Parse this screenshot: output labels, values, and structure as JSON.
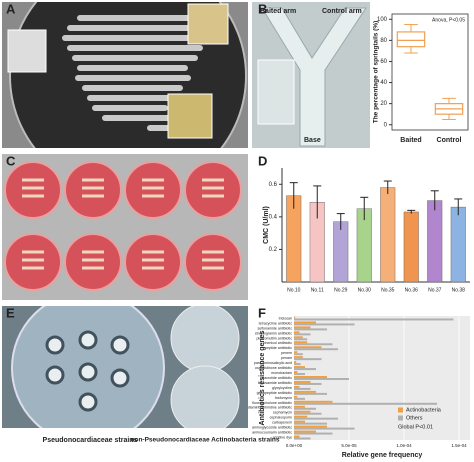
{
  "panel_labels": [
    "A",
    "B",
    "C",
    "D",
    "E",
    "F"
  ],
  "photo_texts": {
    "baited_arm": "Baited arm",
    "control_arm": "Control arm",
    "base": "Base",
    "e_left": "Pseudonocardiaceae strains",
    "e_right": "non-Pseudonocardiaceae Actinobacteria strains"
  },
  "chart_data": [
    {
      "type": "box",
      "ylabel": "The percentage of springtails (%)",
      "annotation": "Anova, P<0.05",
      "categories": [
        "Baited",
        "Control"
      ],
      "color": "#f0a050",
      "stats": [
        {
          "min": 68,
          "q1": 74,
          "median": 80,
          "q3": 88,
          "max": 95
        },
        {
          "min": 5,
          "q1": 10,
          "median": 15,
          "q3": 20,
          "max": 25
        }
      ],
      "ylim": [
        -5,
        105
      ],
      "yticks": [
        0,
        20,
        40,
        60,
        80,
        100
      ]
    },
    {
      "type": "bar",
      "ylabel": "CMC (U/ml)",
      "categories": [
        "No.10",
        "No.11",
        "No.29",
        "No.30",
        "No.35",
        "No.36",
        "No.37",
        "No.38"
      ],
      "values": [
        0.53,
        0.49,
        0.37,
        0.45,
        0.58,
        0.43,
        0.5,
        0.46
      ],
      "errors": [
        0.08,
        0.1,
        0.05,
        0.07,
        0.04,
        0.01,
        0.06,
        0.05
      ],
      "colors": [
        "#f5a35f",
        "#f7c4c4",
        "#b3a4d8",
        "#a8d38c",
        "#f5b07a",
        "#f0954f",
        "#b286cf",
        "#8db3e2"
      ],
      "ylim": [
        0,
        0.7
      ],
      "yticks": [
        0.2,
        0.4,
        0.6
      ]
    },
    {
      "type": "hbar",
      "ylabel": "Antibiotics resistance genes",
      "xlabel": "Relative gene frequency",
      "annotation": "Global P<0.01",
      "categories": [
        "triclosan",
        "tetracycline antibiotic",
        "sulfonamide antibiotic",
        "streptogramin antibiotic",
        "pleuromutilin antibiotic",
        "phenicol antibiotic",
        "peptide antibiotic",
        "penem",
        "penam",
        "para-aminosalicylic acid",
        "oxazolidinone antibiotic",
        "monobactam",
        "macrolide antibiotic",
        "lincosamide antibiotic",
        "glycylcycline",
        "glycopeptide antibiotic",
        "fosfomycin",
        "fluoroquinolone antibiotic",
        "diaminopyrimidine antibiotic",
        "cephamycin",
        "cephalosporin",
        "carbapenem",
        "aminoglycoside antibiotic",
        "aminocoumarin antibiotic",
        "acridine dye"
      ],
      "series": [
        {
          "name": "Actinobacteria",
          "color": "#f0a040",
          "values": [
            1e-06,
            2e-05,
            1.5e-05,
            5e-06,
            8e-06,
            1.2e-05,
            2.5e-05,
            3e-06,
            8e-06,
            2e-06,
            1e-05,
            3e-06,
            3e-05,
            1.5e-05,
            5e-06,
            2e-05,
            3e-06,
            3.5e-05,
            1e-05,
            1.5e-05,
            1.2e-05,
            1e-05,
            3e-05,
            2e-05,
            5e-06
          ]
        },
        {
          "name": "Others",
          "color": "#b0b0b0",
          "values": [
            0.000145,
            5.5e-05,
            3e-05,
            1.5e-05,
            1.2e-05,
            3.5e-05,
            4e-05,
            8e-06,
            2.5e-05,
            6e-06,
            2e-05,
            1e-05,
            5e-05,
            2.5e-05,
            1.5e-05,
            3e-05,
            1e-05,
            0.00013,
            2e-05,
            2.5e-05,
            4e-05,
            3e-05,
            5.5e-05,
            3.5e-05,
            1.5e-05
          ]
        }
      ],
      "xlim": [
        0,
        0.00016
      ],
      "xticks": [
        {
          "value": 0,
          "label": "0.0e+00"
        },
        {
          "value": 5e-05,
          "label": "5.0e-05"
        },
        {
          "value": 0.0001,
          "label": "1.0e-04"
        },
        {
          "value": 0.00015,
          "label": "1.5e-04"
        }
      ]
    }
  ]
}
